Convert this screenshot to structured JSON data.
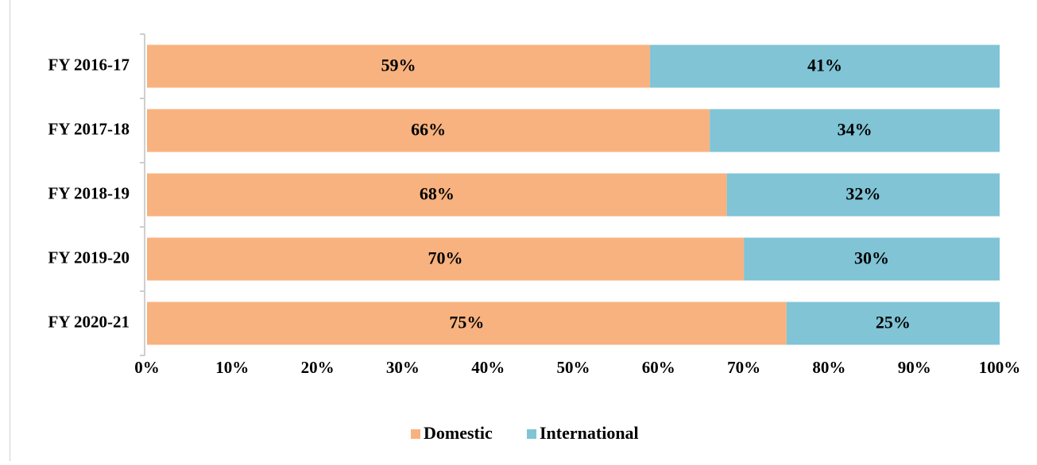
{
  "chart_data": {
    "type": "stacked_bar_horizontal",
    "categories": [
      "FY 2016-17",
      "FY 2017-18",
      "FY 2018-19",
      "FY 2019-20",
      "FY 2020-21"
    ],
    "series": [
      {
        "name": "Domestic",
        "color": "#F8B27F",
        "values": [
          59,
          66,
          68,
          70,
          75
        ],
        "value_labels": [
          "59%",
          "66%",
          "68%",
          "70%",
          "75%"
        ]
      },
      {
        "name": "International",
        "color": "#80C4D6",
        "values": [
          41,
          34,
          32,
          30,
          25
        ],
        "value_labels": [
          "41%",
          "34%",
          "32%",
          "30%",
          "25%"
        ]
      }
    ],
    "xlim": [
      0,
      100
    ],
    "xticks": [
      {
        "value": 0,
        "label": "0%"
      },
      {
        "value": 10,
        "label": "10%"
      },
      {
        "value": 20,
        "label": "20%"
      },
      {
        "value": 30,
        "label": "30%"
      },
      {
        "value": 40,
        "label": "40%"
      },
      {
        "value": 50,
        "label": "50%"
      },
      {
        "value": 60,
        "label": "60%"
      },
      {
        "value": 70,
        "label": "70%"
      },
      {
        "value": 80,
        "label": "80%"
      },
      {
        "value": 90,
        "label": "90%"
      },
      {
        "value": 100,
        "label": "100%"
      }
    ],
    "legend": "bottom"
  }
}
